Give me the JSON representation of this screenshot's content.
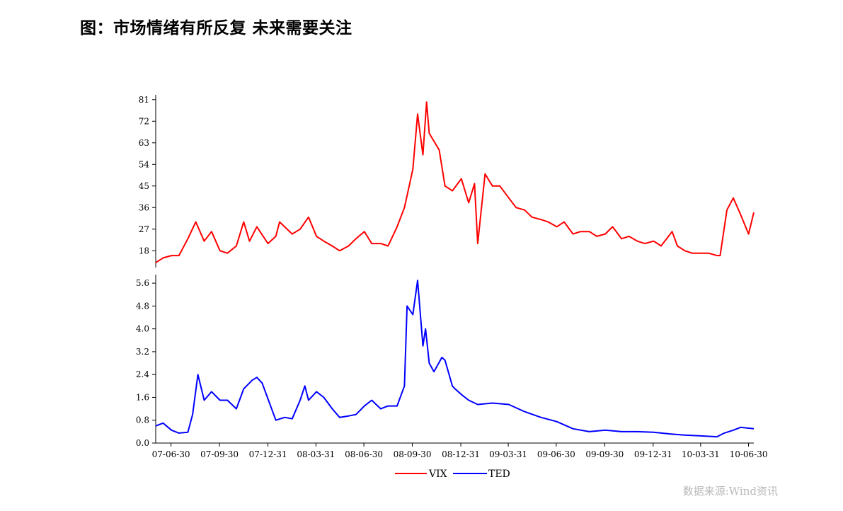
{
  "title": "图：市场情绪有所反复  未来需要关注",
  "source": "数据来源:Wind资讯",
  "chart_data": [
    {
      "type": "line",
      "panel": "top",
      "yticks": [
        18,
        27,
        36,
        45,
        54,
        63,
        72,
        81
      ],
      "ylim": [
        11,
        83
      ],
      "series": [
        {
          "name": "VIX",
          "color": "#ff0000",
          "x": [
            "2007-06-01",
            "2007-06-15",
            "2007-07-01",
            "2007-07-15",
            "2007-08-01",
            "2007-08-16",
            "2007-09-01",
            "2007-09-15",
            "2007-10-01",
            "2007-10-15",
            "2007-11-01",
            "2007-11-15",
            "2007-11-26",
            "2007-12-10",
            "2007-12-31",
            "2008-01-15",
            "2008-01-22",
            "2008-02-15",
            "2008-03-01",
            "2008-03-17",
            "2008-04-01",
            "2008-04-15",
            "2008-05-01",
            "2008-05-15",
            "2008-06-01",
            "2008-06-15",
            "2008-07-01",
            "2008-07-15",
            "2008-08-01",
            "2008-08-15",
            "2008-09-01",
            "2008-09-15",
            "2008-10-01",
            "2008-10-10",
            "2008-10-20",
            "2008-10-27",
            "2008-11-01",
            "2008-11-20",
            "2008-12-01",
            "2008-12-15",
            "2009-01-01",
            "2009-01-15",
            "2009-01-26",
            "2009-02-01",
            "2009-02-15",
            "2009-03-01",
            "2009-03-15",
            "2009-04-01",
            "2009-04-15",
            "2009-05-01",
            "2009-05-15",
            "2009-06-01",
            "2009-06-15",
            "2009-07-01",
            "2009-07-15",
            "2009-08-01",
            "2009-08-15",
            "2009-09-01",
            "2009-09-15",
            "2009-10-01",
            "2009-10-15",
            "2009-11-01",
            "2009-11-15",
            "2009-12-01",
            "2009-12-15",
            "2010-01-01",
            "2010-01-15",
            "2010-02-05",
            "2010-02-15",
            "2010-03-01",
            "2010-03-15",
            "2010-04-01",
            "2010-04-15",
            "2010-05-01",
            "2010-05-07",
            "2010-05-20",
            "2010-06-01",
            "2010-06-15",
            "2010-06-30",
            "2010-07-10"
          ],
          "values": [
            13,
            15,
            16,
            16,
            23,
            30,
            22,
            26,
            18,
            17,
            20,
            30,
            22,
            28,
            21,
            24,
            30,
            25,
            27,
            32,
            24,
            22,
            20,
            18,
            20,
            23,
            26,
            21,
            21,
            20,
            28,
            36,
            52,
            75,
            58,
            80,
            67,
            60,
            45,
            43,
            48,
            38,
            46,
            21,
            50,
            45,
            45,
            40,
            36,
            35,
            32,
            31,
            30,
            28,
            30,
            25,
            26,
            26,
            24,
            25,
            28,
            23,
            24,
            22,
            21,
            22,
            20,
            26,
            20,
            18,
            17,
            17,
            17,
            16,
            16,
            35,
            40,
            33,
            25,
            34
          ]
        }
      ]
    },
    {
      "type": "line",
      "panel": "bottom",
      "yticks": [
        "0.0",
        "0.8",
        "1.6",
        "2.4",
        "3.2",
        "4.0",
        "4.8",
        "5.6"
      ],
      "ylim": [
        0,
        5.9
      ],
      "series": [
        {
          "name": "TED",
          "color": "#0000ff",
          "x": [
            "2007-06-01",
            "2007-06-15",
            "2007-07-01",
            "2007-07-15",
            "2007-08-01",
            "2007-08-10",
            "2007-08-20",
            "2007-09-01",
            "2007-09-15",
            "2007-10-01",
            "2007-10-15",
            "2007-11-01",
            "2007-11-15",
            "2007-12-01",
            "2007-12-10",
            "2007-12-20",
            "2008-01-01",
            "2008-01-15",
            "2008-02-01",
            "2008-02-15",
            "2008-03-01",
            "2008-03-10",
            "2008-03-17",
            "2008-04-01",
            "2008-04-15",
            "2008-05-01",
            "2008-05-15",
            "2008-06-01",
            "2008-06-15",
            "2008-07-01",
            "2008-07-15",
            "2008-08-01",
            "2008-08-15",
            "2008-09-01",
            "2008-09-15",
            "2008-09-20",
            "2008-10-01",
            "2008-10-10",
            "2008-10-20",
            "2008-10-25",
            "2008-11-01",
            "2008-11-10",
            "2008-11-25",
            "2008-12-01",
            "2008-12-15",
            "2008-12-20",
            "2009-01-01",
            "2009-01-15",
            "2009-02-01",
            "2009-03-01",
            "2009-04-01",
            "2009-05-01",
            "2009-06-01",
            "2009-07-01",
            "2009-08-01",
            "2009-09-01",
            "2009-10-01",
            "2009-11-01",
            "2009-12-01",
            "2010-01-01",
            "2010-02-01",
            "2010-03-01",
            "2010-04-01",
            "2010-05-01",
            "2010-05-15",
            "2010-06-01",
            "2010-06-15",
            "2010-07-10"
          ],
          "values": [
            0.6,
            0.7,
            0.45,
            0.35,
            0.38,
            1.0,
            2.4,
            1.5,
            1.8,
            1.5,
            1.5,
            1.2,
            1.9,
            2.2,
            2.3,
            2.1,
            1.5,
            0.8,
            0.9,
            0.85,
            1.5,
            2.0,
            1.5,
            1.8,
            1.6,
            1.2,
            0.9,
            0.95,
            1.0,
            1.3,
            1.5,
            1.2,
            1.3,
            1.3,
            2.0,
            4.8,
            4.5,
            5.7,
            3.4,
            4.0,
            2.8,
            2.5,
            3.0,
            2.9,
            2.0,
            1.9,
            1.7,
            1.5,
            1.35,
            1.4,
            1.35,
            1.1,
            0.9,
            0.75,
            0.5,
            0.4,
            0.45,
            0.4,
            0.4,
            0.38,
            0.32,
            0.28,
            0.25,
            0.22,
            0.35,
            0.45,
            0.55,
            0.5
          ]
        }
      ]
    }
  ],
  "xticks": [
    "07-06-30",
    "07-09-30",
    "07-12-31",
    "08-03-31",
    "08-06-30",
    "08-09-30",
    "08-12-31",
    "09-03-31",
    "09-06-30",
    "09-09-30",
    "09-12-31",
    "10-03-31",
    "10-06-30"
  ]
}
